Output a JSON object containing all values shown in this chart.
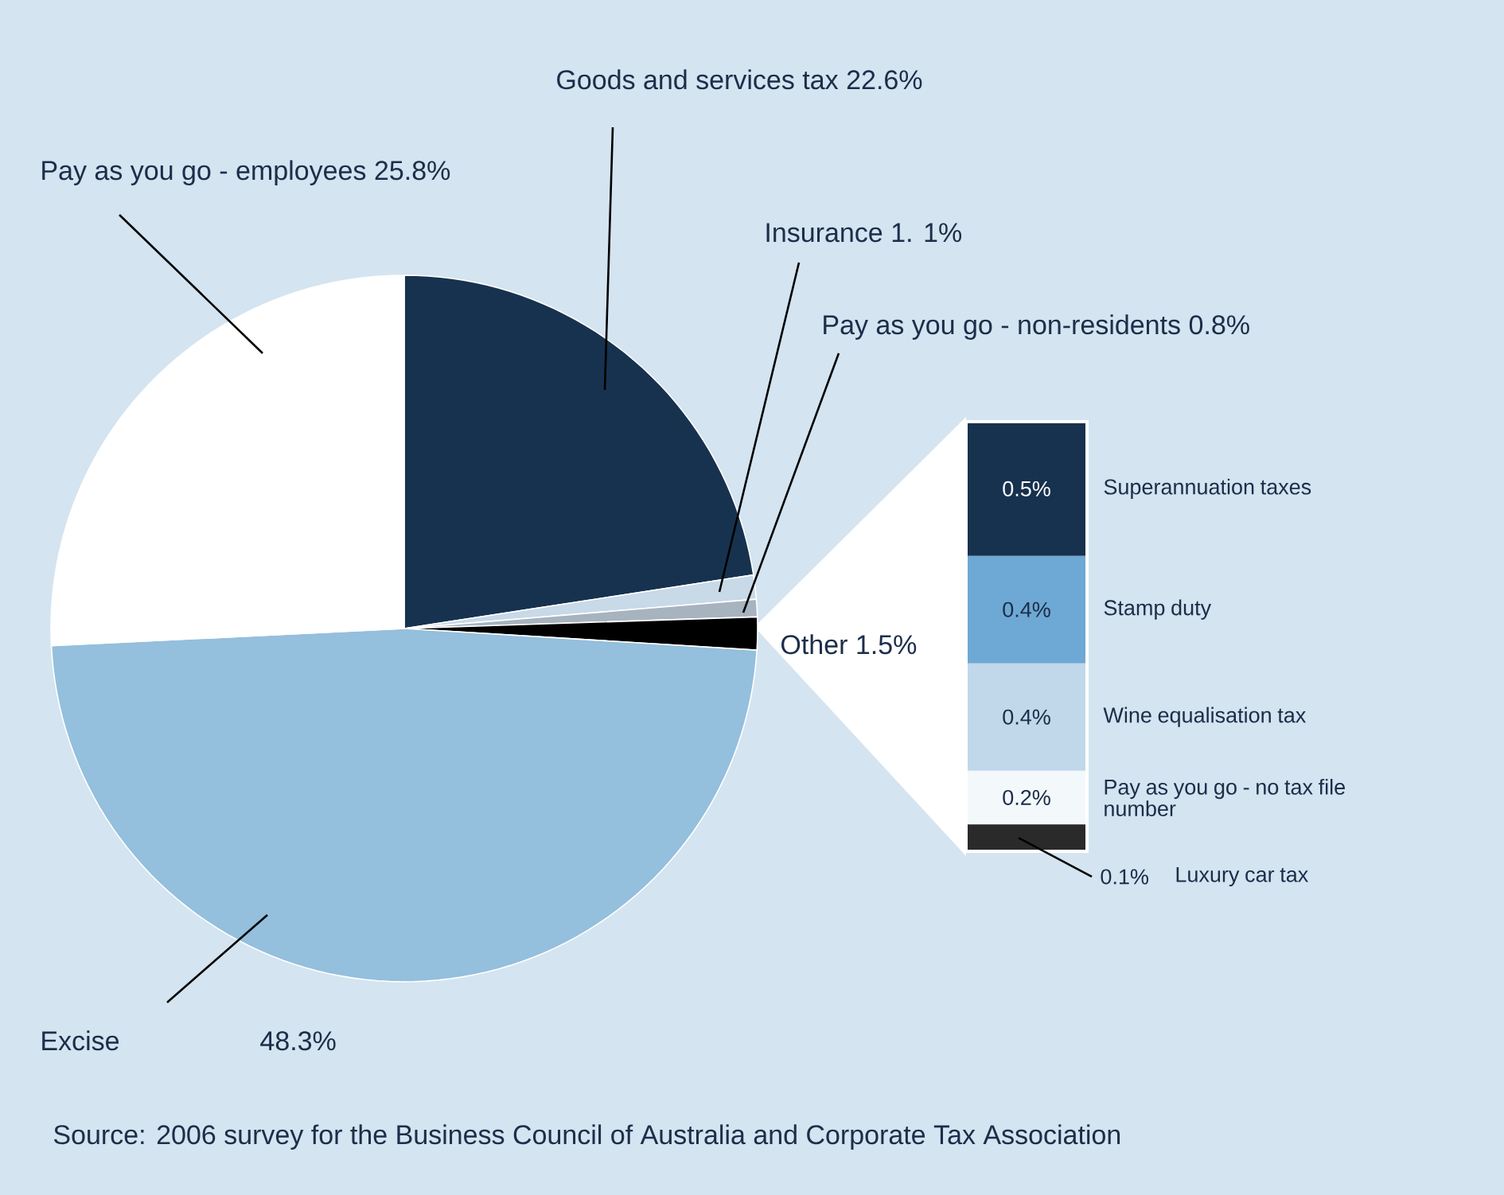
{
  "chart_data": [
    {
      "type": "pie",
      "categories": [
        "Goods and services tax",
        "Insurance",
        "Pay as you go - non-residents",
        "Other",
        "Excise",
        "Pay as you go - employees"
      ],
      "values": [
        22.6,
        1.1,
        0.8,
        1.5,
        48.3,
        25.8
      ],
      "value_labels": [
        "22.6%",
        "1. 1%",
        "0.8%",
        "1.5%",
        "48.3%",
        "25.8%"
      ],
      "colors": [
        "#17324f",
        "#c8d9e8",
        "#a7b3bf",
        "#000000",
        "#94bfdd",
        "#ffffff"
      ],
      "annotations": [
        "Source: 2006 survey for the Business Council of Australia and Corporate Tax Association"
      ]
    },
    {
      "type": "bar",
      "stacked": true,
      "categories": [
        null
      ],
      "series": [
        {
          "name": "Luxury car tax",
          "color": "#2a2a2a",
          "values": [
            0.1
          ],
          "value_labels": [
            "0.1%"
          ]
        },
        {
          "name": "Pay as you go - no tax file number",
          "color": "#f3f8fb",
          "values": [
            0.2
          ],
          "value_labels": [
            "0.2%"
          ]
        },
        {
          "name": "Wine equalisation tax",
          "color": "#c0d8ea",
          "values": [
            0.4
          ],
          "value_labels": [
            "0.4%"
          ]
        },
        {
          "name": "Stamp duty",
          "color": "#6ea8d4",
          "values": [
            0.4
          ],
          "value_labels": [
            "0.4%"
          ]
        },
        {
          "name": "Superannuation taxes",
          "color": "#17324f",
          "values": [
            0.5
          ],
          "value_labels": [
            "0.5%"
          ]
        }
      ]
    }
  ]
}
